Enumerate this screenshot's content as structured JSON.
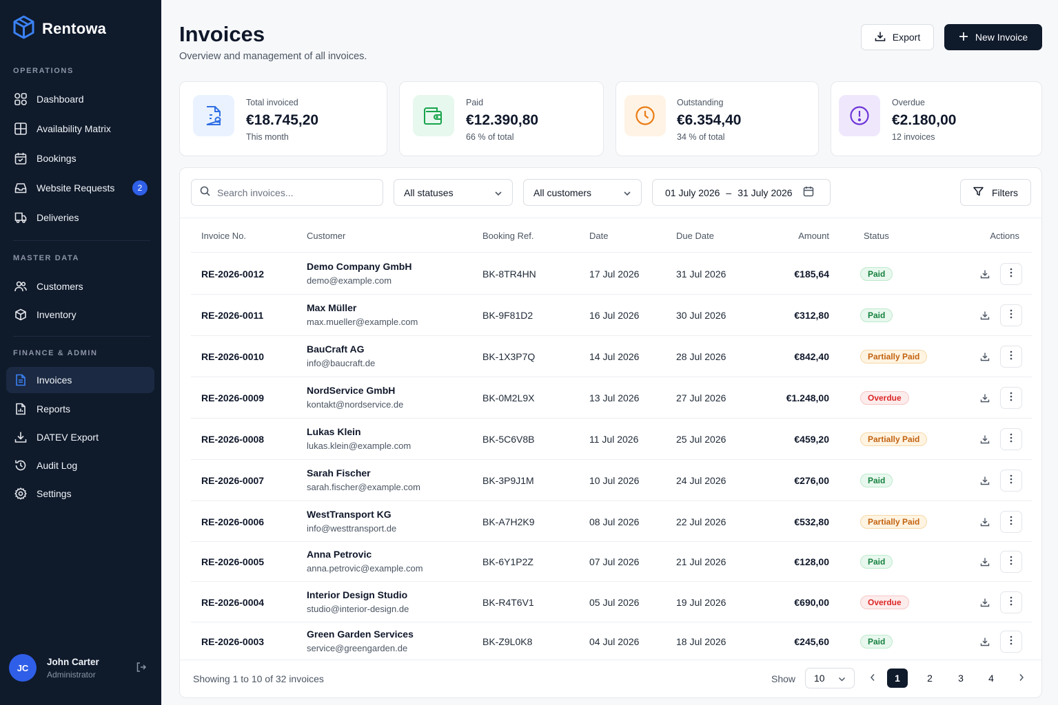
{
  "app": {
    "name": "Rentowa"
  },
  "sidebar": {
    "sections": [
      {
        "title": "OPERATIONS"
      },
      {
        "title": "MASTER DATA"
      },
      {
        "title": "FINANCE & ADMIN"
      }
    ],
    "items": [
      {
        "label": "Dashboard",
        "icon": "dashboard-icon"
      },
      {
        "label": "Availability Matrix",
        "icon": "grid-icon"
      },
      {
        "label": "Bookings",
        "icon": "calendar-icon"
      },
      {
        "label": "Website Requests",
        "icon": "inbox-icon",
        "badge": "2"
      },
      {
        "label": "Deliveries",
        "icon": "truck-icon"
      },
      {
        "label": "Customers",
        "icon": "users-icon"
      },
      {
        "label": "Inventory",
        "icon": "box-icon"
      },
      {
        "label": "Invoices",
        "icon": "invoice-icon",
        "active": true
      },
      {
        "label": "Reports",
        "icon": "report-icon"
      },
      {
        "label": "DATEV Export",
        "icon": "download-icon"
      },
      {
        "label": "Audit Log",
        "icon": "history-icon"
      },
      {
        "label": "Settings",
        "icon": "gear-icon"
      }
    ],
    "user": {
      "initials": "JC",
      "name": "John Carter",
      "role": "Administrator"
    }
  },
  "header": {
    "title": "Invoices",
    "subtitle": "Overview and management of all invoices.",
    "export_label": "Export",
    "new_label": "New Invoice"
  },
  "stats": [
    {
      "label": "Total invoiced",
      "value": "€18.745,20",
      "sub": "This month",
      "color": "#2f6fe4"
    },
    {
      "label": "Paid",
      "value": "€12.390,80",
      "sub": "66 % of total",
      "color": "#16a34a"
    },
    {
      "label": "Outstanding",
      "value": "€6.354,40",
      "sub": "34 % of total",
      "color": "#ea7c13"
    },
    {
      "label": "Overdue",
      "value": "€2.180,00",
      "sub": "12 invoices",
      "color": "#6d35d8"
    }
  ],
  "filters": {
    "search_placeholder": "Search invoices...",
    "status": "All statuses",
    "customer": "All customers",
    "date_from": "01 July 2026",
    "date_sep": "–",
    "date_to": "31 July 2026",
    "filters_label": "Filters"
  },
  "table": {
    "columns": [
      "Invoice No.",
      "Customer",
      "Booking Ref.",
      "Date",
      "Due Date",
      "Amount",
      "Status",
      "Actions"
    ],
    "rows": [
      {
        "no": "RE-2026-0012",
        "name": "Demo Company GmbH",
        "email": "demo@example.com",
        "ref": "BK-8TR4HN",
        "date": "17 Jul 2026",
        "due": "31 Jul 2026",
        "amount": "€185,64",
        "status": "Paid",
        "kind": "paid"
      },
      {
        "no": "RE-2026-0011",
        "name": "Max Müller",
        "email": "max.mueller@example.com",
        "ref": "BK-9F81D2",
        "date": "16 Jul 2026",
        "due": "30 Jul 2026",
        "amount": "€312,80",
        "status": "Paid",
        "kind": "paid"
      },
      {
        "no": "RE-2026-0010",
        "name": "BauCraft AG",
        "email": "info@baucraft.de",
        "ref": "BK-1X3P7Q",
        "date": "14 Jul 2026",
        "due": "28 Jul 2026",
        "amount": "€842,40",
        "status": "Partially Paid",
        "kind": "partial"
      },
      {
        "no": "RE-2026-0009",
        "name": "NordService GmbH",
        "email": "kontakt@nordservice.de",
        "ref": "BK-0M2L9X",
        "date": "13 Jul 2026",
        "due": "27 Jul 2026",
        "amount": "€1.248,00",
        "status": "Overdue",
        "kind": "overdue"
      },
      {
        "no": "RE-2026-0008",
        "name": "Lukas Klein",
        "email": "lukas.klein@example.com",
        "ref": "BK-5C6V8B",
        "date": "11 Jul 2026",
        "due": "25 Jul 2026",
        "amount": "€459,20",
        "status": "Partially Paid",
        "kind": "partial"
      },
      {
        "no": "RE-2026-0007",
        "name": "Sarah Fischer",
        "email": "sarah.fischer@example.com",
        "ref": "BK-3P9J1M",
        "date": "10 Jul 2026",
        "due": "24 Jul 2026",
        "amount": "€276,00",
        "status": "Paid",
        "kind": "paid"
      },
      {
        "no": "RE-2026-0006",
        "name": "WestTransport KG",
        "email": "info@westtransport.de",
        "ref": "BK-A7H2K9",
        "date": "08 Jul 2026",
        "due": "22 Jul 2026",
        "amount": "€532,80",
        "status": "Partially Paid",
        "kind": "partial"
      },
      {
        "no": "RE-2026-0005",
        "name": "Anna Petrovic",
        "email": "anna.petrovic@example.com",
        "ref": "BK-6Y1P2Z",
        "date": "07 Jul 2026",
        "due": "21 Jul 2026",
        "amount": "€128,00",
        "status": "Paid",
        "kind": "paid"
      },
      {
        "no": "RE-2026-0004",
        "name": "Interior Design Studio",
        "email": "studio@interior-design.de",
        "ref": "BK-R4T6V1",
        "date": "05 Jul 2026",
        "due": "19 Jul 2026",
        "amount": "€690,00",
        "status": "Overdue",
        "kind": "overdue"
      },
      {
        "no": "RE-2026-0003",
        "name": "Green Garden Services",
        "email": "service@greengarden.de",
        "ref": "BK-Z9L0K8",
        "date": "04 Jul 2026",
        "due": "18 Jul 2026",
        "amount": "€245,60",
        "status": "Paid",
        "kind": "paid"
      }
    ]
  },
  "footer": {
    "showing": "Showing 1 to 10 of 32 invoices",
    "show_label": "Show",
    "per_page": "10",
    "pages": [
      "1",
      "2",
      "3",
      "4"
    ],
    "current_page": "1"
  }
}
